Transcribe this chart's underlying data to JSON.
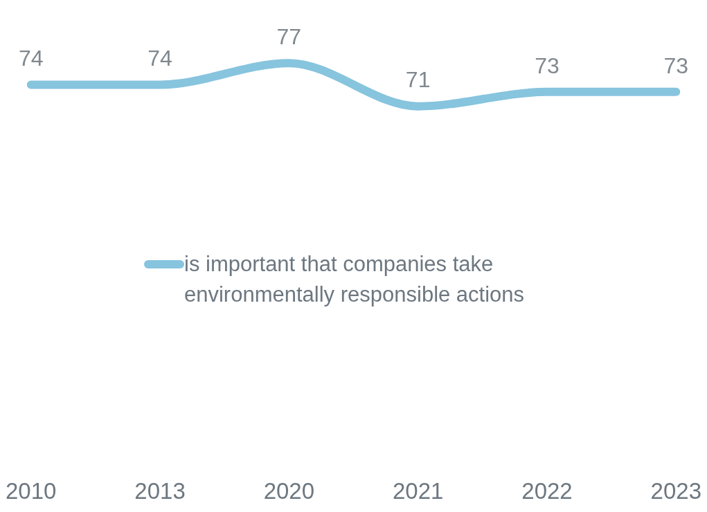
{
  "chart_data": {
    "type": "line",
    "categories": [
      "2010",
      "2013",
      "2020",
      "2021",
      "2022",
      "2023"
    ],
    "series": [
      {
        "name": "is important that companies take environmentally responsible actions",
        "color": "#87c4de",
        "values": [
          74,
          74,
          77,
          71,
          73,
          73
        ]
      }
    ],
    "tick_labels": "x",
    "data_labels": true,
    "legend": "center",
    "grid": false,
    "marker": "none",
    "line_style": "solid"
  }
}
